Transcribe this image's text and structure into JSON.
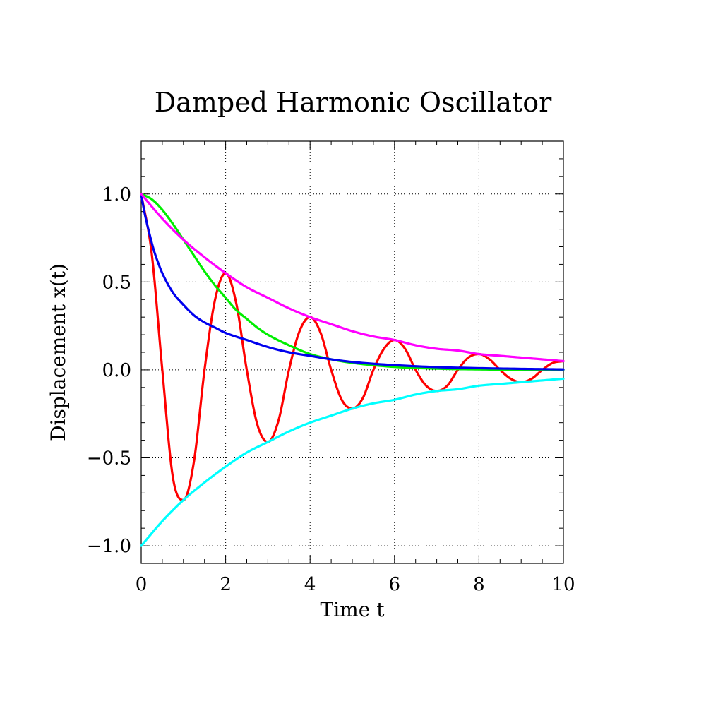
{
  "chart_data": {
    "type": "line",
    "title": "Damped Harmonic Oscillator",
    "xlabel": "Time t",
    "ylabel": "Displacement x(t)",
    "xlim": [
      0,
      10
    ],
    "ylim": [
      -1.1,
      1.3
    ],
    "x_ticks": [
      0,
      2,
      4,
      6,
      8,
      10
    ],
    "x_tick_labels": [
      "0",
      "2",
      "4",
      "6",
      "8",
      "10"
    ],
    "y_ticks": [
      -1.0,
      -0.5,
      0.0,
      0.5,
      1.0
    ],
    "y_tick_labels": [
      "−1.0",
      "−0.5",
      "0.0",
      "0.5",
      "1.0"
    ],
    "grid": true,
    "legend": "none",
    "series": [
      {
        "color": "#ff0000",
        "x": [
          0,
          0.25,
          0.5,
          0.75,
          1.0,
          1.25,
          1.5,
          1.75,
          2.0,
          2.25,
          2.5,
          2.75,
          3.0,
          3.25,
          3.5,
          3.75,
          4.0,
          4.25,
          4.5,
          4.75,
          5.0,
          5.25,
          5.5,
          5.75,
          6.0,
          6.25,
          6.5,
          6.75,
          7.0,
          7.25,
          7.5,
          7.75,
          8.0,
          8.25,
          8.5,
          8.75,
          9.0,
          9.25,
          9.5,
          9.75,
          10.0
        ],
        "y": [
          1.0,
          0.66,
          0.0,
          -0.61,
          -0.74,
          -0.52,
          0.0,
          0.4,
          0.55,
          0.38,
          0.0,
          -0.31,
          -0.41,
          -0.29,
          0.0,
          0.22,
          0.3,
          0.21,
          0.0,
          -0.17,
          -0.22,
          -0.16,
          0.0,
          0.12,
          0.17,
          0.12,
          0.0,
          -0.09,
          -0.12,
          -0.09,
          0.0,
          0.07,
          0.09,
          0.06,
          0.0,
          -0.05,
          -0.07,
          -0.05,
          0.0,
          0.04,
          0.05
        ]
      },
      {
        "color": "#00ee00",
        "x": [
          0,
          0.25,
          0.5,
          0.75,
          1.0,
          1.25,
          1.5,
          1.75,
          2.0,
          2.25,
          2.5,
          2.75,
          3.0,
          3.5,
          4.0,
          4.5,
          5.0,
          5.5,
          6.0,
          7.0,
          8.0,
          9.0,
          10.0
        ],
        "y": [
          1.0,
          0.97,
          0.91,
          0.83,
          0.74,
          0.65,
          0.56,
          0.48,
          0.41,
          0.34,
          0.29,
          0.24,
          0.2,
          0.14,
          0.09,
          0.06,
          0.04,
          0.027,
          0.017,
          0.007,
          0.003,
          0.001,
          0.0005
        ]
      },
      {
        "color": "#0000ee",
        "x": [
          0,
          0.05,
          0.1,
          0.2,
          0.3,
          0.4,
          0.5,
          0.75,
          1.0,
          1.25,
          1.5,
          1.75,
          2.0,
          2.5,
          3.0,
          3.5,
          4.0,
          4.5,
          5.0,
          6.0,
          7.0,
          8.0,
          9.0,
          10.0
        ],
        "y": [
          1.0,
          0.93,
          0.87,
          0.77,
          0.68,
          0.61,
          0.55,
          0.44,
          0.37,
          0.31,
          0.27,
          0.24,
          0.21,
          0.17,
          0.13,
          0.1,
          0.08,
          0.06,
          0.045,
          0.027,
          0.016,
          0.01,
          0.006,
          0.003
        ]
      },
      {
        "color": "#ff00ff",
        "x": [
          0,
          0.5,
          1.0,
          1.5,
          2.0,
          2.5,
          3.0,
          3.5,
          4.0,
          4.5,
          5.0,
          5.5,
          6.0,
          6.5,
          7.0,
          7.5,
          8.0,
          8.5,
          9.0,
          9.5,
          10.0
        ],
        "y": [
          1.0,
          0.86,
          0.74,
          0.64,
          0.55,
          0.47,
          0.41,
          0.35,
          0.3,
          0.26,
          0.22,
          0.19,
          0.17,
          0.14,
          0.12,
          0.11,
          0.09,
          0.08,
          0.07,
          0.06,
          0.05
        ]
      },
      {
        "color": "#00ffff",
        "x": [
          0,
          0.5,
          1.0,
          1.5,
          2.0,
          2.5,
          3.0,
          3.5,
          4.0,
          4.5,
          5.0,
          5.5,
          6.0,
          6.5,
          7.0,
          7.5,
          8.0,
          8.5,
          9.0,
          9.5,
          10.0
        ],
        "y": [
          -1.0,
          -0.86,
          -0.74,
          -0.64,
          -0.55,
          -0.47,
          -0.41,
          -0.35,
          -0.3,
          -0.26,
          -0.22,
          -0.19,
          -0.17,
          -0.14,
          -0.12,
          -0.11,
          -0.09,
          -0.08,
          -0.07,
          -0.06,
          -0.05
        ]
      }
    ]
  }
}
